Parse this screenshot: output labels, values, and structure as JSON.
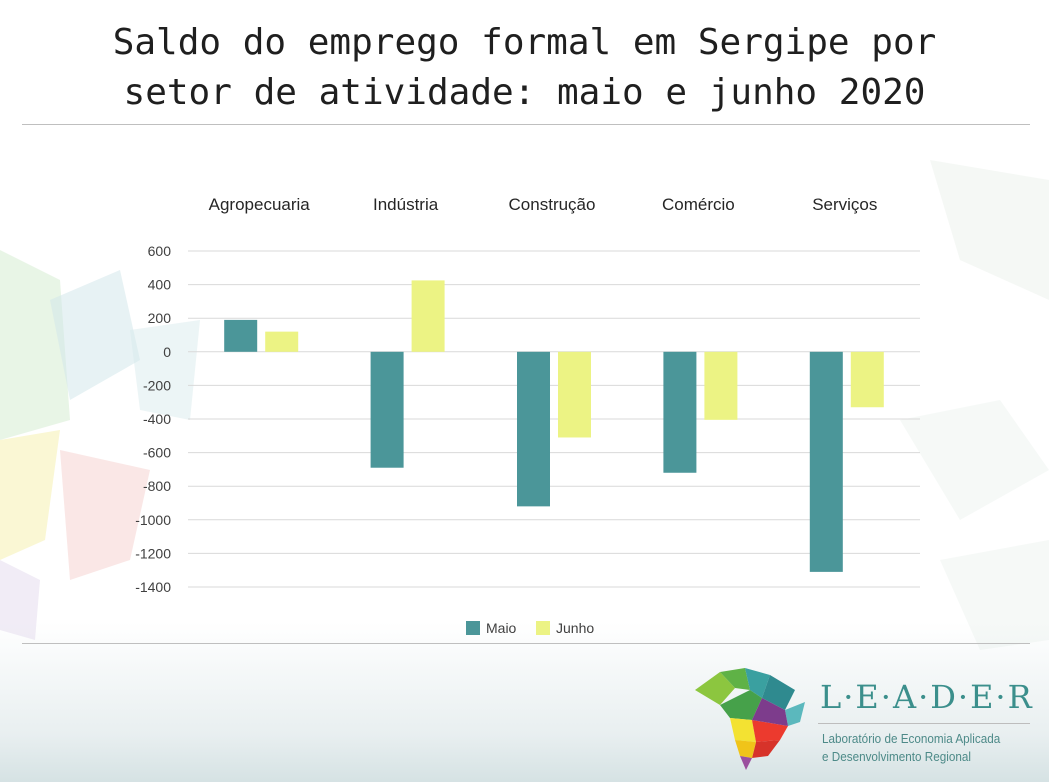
{
  "title": {
    "line1": "Saldo do emprego formal em Sergipe por",
    "line2": "setor de atividade: maio e junho 2020"
  },
  "chart_data": {
    "type": "bar",
    "categories": [
      "Agropecuaria",
      "Indústria",
      "Construção",
      "Comércio",
      "Serviços"
    ],
    "series": [
      {
        "name": "Maio",
        "color": "#4b9699",
        "values": [
          190,
          -690,
          -920,
          -720,
          -1310
        ]
      },
      {
        "name": "Junho",
        "color": "#ecf384",
        "values": [
          120,
          425,
          -510,
          -405,
          -330
        ]
      }
    ],
    "ylim": [
      -1400,
      600
    ],
    "yticks": [
      600,
      400,
      200,
      0,
      -200,
      -400,
      -600,
      -800,
      -1000,
      -1200,
      -1400
    ],
    "grid": true,
    "legend_position": "bottom",
    "category_labels_position": "top"
  },
  "logo": {
    "wordmark": "L·E·A·D·E·R",
    "subtitle_line1": "Laboratório de Economia Aplicada",
    "subtitle_line2": "e Desenvolvimento Regional"
  }
}
